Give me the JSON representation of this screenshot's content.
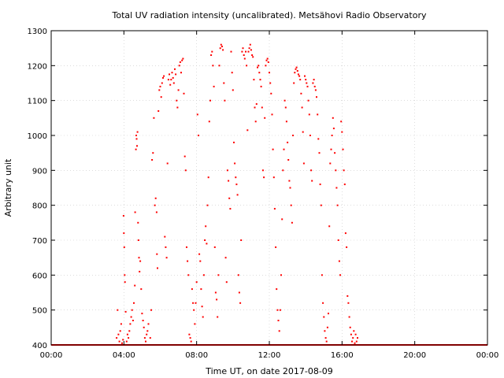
{
  "chart_data": {
    "type": "scatter",
    "title": "Total UV radiation intensity (uncalibrated). Metsähovi Radio Observatory",
    "xlabel": "Time UT, on date 2017-08-09",
    "ylabel": "Arbitrary unit",
    "xlim": [
      0,
      24
    ],
    "ylim": [
      400,
      1300
    ],
    "x_ticks": [
      0,
      4,
      8,
      12,
      16,
      20,
      24
    ],
    "x_tick_labels": [
      "00:00",
      "04:00",
      "08:00",
      "12:00",
      "16:00",
      "20:00",
      "00:00"
    ],
    "y_ticks": [
      400,
      500,
      600,
      700,
      800,
      900,
      1000,
      1100,
      1200,
      1300
    ],
    "y_tick_labels": [
      "400",
      "500",
      "600",
      "700",
      "800",
      "900",
      "1000",
      "1100",
      "1200",
      "1300"
    ],
    "grid": true,
    "point_color": "#ff0000",
    "baseline": {
      "value": 400,
      "x_start": 0,
      "x_end": 24
    },
    "series": [
      {
        "points": [
          [
            3.6,
            420
          ],
          [
            3.65,
            500
          ],
          [
            3.7,
            430
          ],
          [
            3.75,
            410
          ],
          [
            3.8,
            440
          ],
          [
            3.85,
            460
          ],
          [
            3.9,
            405
          ],
          [
            3.95,
            415
          ],
          [
            3.98,
            770
          ],
          [
            4.0,
            720
          ],
          [
            4.02,
            680
          ],
          [
            4.04,
            600
          ],
          [
            4.06,
            580
          ],
          [
            4.1,
            495
          ],
          [
            4.15,
            410
          ],
          [
            4.2,
            430
          ],
          [
            4.25,
            420
          ],
          [
            4.3,
            440
          ],
          [
            4.35,
            460
          ],
          [
            4.4,
            480
          ],
          [
            4.45,
            500
          ],
          [
            4.5,
            470
          ],
          [
            4.55,
            520
          ],
          [
            4.6,
            570
          ],
          [
            4.62,
            780
          ],
          [
            4.66,
            960
          ],
          [
            4.68,
            1000
          ],
          [
            4.7,
            990
          ],
          [
            4.72,
            970
          ],
          [
            4.75,
            1010
          ],
          [
            4.78,
            750
          ],
          [
            4.8,
            700
          ],
          [
            4.83,
            650
          ],
          [
            4.86,
            610
          ],
          [
            4.9,
            640
          ],
          [
            4.95,
            560
          ],
          [
            5.0,
            490
          ],
          [
            5.05,
            470
          ],
          [
            5.1,
            450
          ],
          [
            5.15,
            420
          ],
          [
            5.2,
            410
          ],
          [
            5.25,
            430
          ],
          [
            5.3,
            440
          ],
          [
            5.35,
            460
          ],
          [
            5.4,
            400
          ],
          [
            5.45,
            420
          ],
          [
            5.5,
            500
          ],
          [
            5.55,
            930
          ],
          [
            5.6,
            950
          ],
          [
            5.65,
            1050
          ],
          [
            5.7,
            800
          ],
          [
            5.75,
            820
          ],
          [
            5.8,
            780
          ],
          [
            5.82,
            660
          ],
          [
            5.85,
            620
          ],
          [
            5.9,
            1070
          ],
          [
            5.95,
            1130
          ],
          [
            6.0,
            1140
          ],
          [
            6.05,
            1110
          ],
          [
            6.1,
            1150
          ],
          [
            6.15,
            1165
          ],
          [
            6.2,
            1170
          ],
          [
            6.25,
            710
          ],
          [
            6.3,
            680
          ],
          [
            6.35,
            650
          ],
          [
            6.4,
            920
          ],
          [
            6.45,
            1160
          ],
          [
            6.5,
            1175
          ],
          [
            6.55,
            1145
          ],
          [
            6.6,
            1160
          ],
          [
            6.65,
            1180
          ],
          [
            6.7,
            1165
          ],
          [
            6.75,
            1150
          ],
          [
            6.8,
            1190
          ],
          [
            6.85,
            1175
          ],
          [
            6.9,
            1100
          ],
          [
            6.95,
            1080
          ],
          [
            7.0,
            1130
          ],
          [
            7.05,
            1200
          ],
          [
            7.1,
            1210
          ],
          [
            7.15,
            1180
          ],
          [
            7.2,
            1215
          ],
          [
            7.25,
            1220
          ],
          [
            7.3,
            1120
          ],
          [
            7.35,
            940
          ],
          [
            7.4,
            900
          ],
          [
            7.45,
            680
          ],
          [
            7.5,
            640
          ],
          [
            7.55,
            600
          ],
          [
            7.6,
            430
          ],
          [
            7.65,
            420
          ],
          [
            7.7,
            410
          ],
          [
            7.75,
            560
          ],
          [
            7.8,
            520
          ],
          [
            7.85,
            500
          ],
          [
            7.9,
            460
          ],
          [
            7.95,
            520
          ],
          [
            8.0,
            580
          ],
          [
            8.05,
            1060
          ],
          [
            8.1,
            1000
          ],
          [
            8.15,
            660
          ],
          [
            8.2,
            640
          ],
          [
            8.25,
            560
          ],
          [
            8.3,
            510
          ],
          [
            8.35,
            480
          ],
          [
            8.4,
            600
          ],
          [
            8.45,
            700
          ],
          [
            8.5,
            740
          ],
          [
            8.55,
            690
          ],
          [
            8.6,
            800
          ],
          [
            8.65,
            880
          ],
          [
            8.7,
            1040
          ],
          [
            8.75,
            1100
          ],
          [
            8.8,
            1230
          ],
          [
            8.85,
            1240
          ],
          [
            8.9,
            1200
          ],
          [
            8.95,
            1140
          ],
          [
            9.0,
            680
          ],
          [
            9.05,
            550
          ],
          [
            9.1,
            530
          ],
          [
            9.15,
            480
          ],
          [
            9.2,
            600
          ],
          [
            9.25,
            1200
          ],
          [
            9.3,
            1250
          ],
          [
            9.35,
            1260
          ],
          [
            9.4,
            1255
          ],
          [
            9.45,
            1245
          ],
          [
            9.5,
            1150
          ],
          [
            9.55,
            1100
          ],
          [
            9.6,
            650
          ],
          [
            9.65,
            580
          ],
          [
            9.7,
            900
          ],
          [
            9.75,
            870
          ],
          [
            9.8,
            820
          ],
          [
            9.85,
            790
          ],
          [
            9.9,
            1240
          ],
          [
            9.95,
            1180
          ],
          [
            10.0,
            1130
          ],
          [
            10.05,
            980
          ],
          [
            10.1,
            920
          ],
          [
            10.15,
            880
          ],
          [
            10.2,
            860
          ],
          [
            10.25,
            830
          ],
          [
            10.3,
            600
          ],
          [
            10.35,
            550
          ],
          [
            10.4,
            520
          ],
          [
            10.45,
            700
          ],
          [
            10.5,
            1240
          ],
          [
            10.55,
            1250
          ],
          [
            10.6,
            1230
          ],
          [
            10.65,
            1220
          ],
          [
            10.7,
            1240
          ],
          [
            10.75,
            1200
          ],
          [
            10.8,
            1015
          ],
          [
            10.85,
            1240
          ],
          [
            10.9,
            1250
          ],
          [
            10.95,
            1260
          ],
          [
            11.0,
            1245
          ],
          [
            11.05,
            1230
          ],
          [
            11.1,
            1225
          ],
          [
            11.15,
            1160
          ],
          [
            11.2,
            1080
          ],
          [
            11.25,
            1040
          ],
          [
            11.3,
            1090
          ],
          [
            11.35,
            1195
          ],
          [
            11.4,
            1200
          ],
          [
            11.45,
            1180
          ],
          [
            11.5,
            1160
          ],
          [
            11.55,
            1140
          ],
          [
            11.6,
            1080
          ],
          [
            11.65,
            900
          ],
          [
            11.7,
            880
          ],
          [
            11.75,
            1050
          ],
          [
            11.8,
            1200
          ],
          [
            11.85,
            1215
          ],
          [
            11.9,
            1220
          ],
          [
            11.95,
            1210
          ],
          [
            12.0,
            1180
          ],
          [
            12.05,
            1150
          ],
          [
            12.1,
            1120
          ],
          [
            12.15,
            1060
          ],
          [
            12.2,
            960
          ],
          [
            12.25,
            880
          ],
          [
            12.3,
            790
          ],
          [
            12.35,
            680
          ],
          [
            12.4,
            560
          ],
          [
            12.45,
            500
          ],
          [
            12.5,
            470
          ],
          [
            12.55,
            440
          ],
          [
            12.6,
            500
          ],
          [
            12.65,
            600
          ],
          [
            12.7,
            760
          ],
          [
            12.75,
            900
          ],
          [
            12.8,
            960
          ],
          [
            12.85,
            1100
          ],
          [
            12.9,
            1080
          ],
          [
            12.95,
            1040
          ],
          [
            13.0,
            980
          ],
          [
            13.05,
            930
          ],
          [
            13.1,
            870
          ],
          [
            13.15,
            850
          ],
          [
            13.2,
            800
          ],
          [
            13.25,
            750
          ],
          [
            13.3,
            1000
          ],
          [
            13.35,
            1150
          ],
          [
            13.4,
            1180
          ],
          [
            13.45,
            1190
          ],
          [
            13.5,
            1195
          ],
          [
            13.55,
            1185
          ],
          [
            13.6,
            1175
          ],
          [
            13.65,
            1170
          ],
          [
            13.7,
            1160
          ],
          [
            13.75,
            1120
          ],
          [
            13.8,
            1080
          ],
          [
            13.85,
            1010
          ],
          [
            13.9,
            920
          ],
          [
            13.95,
            1170
          ],
          [
            14.0,
            1160
          ],
          [
            14.05,
            1150
          ],
          [
            14.1,
            1140
          ],
          [
            14.15,
            1100
          ],
          [
            14.2,
            1060
          ],
          [
            14.25,
            1000
          ],
          [
            14.3,
            900
          ],
          [
            14.35,
            870
          ],
          [
            14.4,
            1150
          ],
          [
            14.45,
            1160
          ],
          [
            14.5,
            1140
          ],
          [
            14.55,
            1130
          ],
          [
            14.6,
            1110
          ],
          [
            14.65,
            1060
          ],
          [
            14.7,
            990
          ],
          [
            14.75,
            950
          ],
          [
            14.8,
            860
          ],
          [
            14.85,
            800
          ],
          [
            14.9,
            600
          ],
          [
            14.95,
            520
          ],
          [
            15.0,
            480
          ],
          [
            15.05,
            440
          ],
          [
            15.1,
            420
          ],
          [
            15.15,
            410
          ],
          [
            15.2,
            450
          ],
          [
            15.25,
            490
          ],
          [
            15.3,
            740
          ],
          [
            15.35,
            920
          ],
          [
            15.4,
            960
          ],
          [
            15.45,
            1000
          ],
          [
            15.5,
            1050
          ],
          [
            15.55,
            1020
          ],
          [
            15.6,
            950
          ],
          [
            15.65,
            900
          ],
          [
            15.7,
            850
          ],
          [
            15.75,
            800
          ],
          [
            15.8,
            700
          ],
          [
            15.85,
            640
          ],
          [
            15.9,
            600
          ],
          [
            15.95,
            1040
          ],
          [
            16.0,
            1010
          ],
          [
            16.05,
            960
          ],
          [
            16.1,
            900
          ],
          [
            16.15,
            860
          ],
          [
            16.2,
            720
          ],
          [
            16.25,
            680
          ],
          [
            16.3,
            540
          ],
          [
            16.35,
            520
          ],
          [
            16.4,
            480
          ],
          [
            16.45,
            450
          ],
          [
            16.5,
            430
          ],
          [
            16.55,
            410
          ],
          [
            16.6,
            420
          ],
          [
            16.65,
            440
          ],
          [
            16.7,
            405
          ],
          [
            16.75,
            430
          ],
          [
            16.8,
            410
          ],
          [
            16.85,
            420
          ]
        ]
      }
    ]
  }
}
